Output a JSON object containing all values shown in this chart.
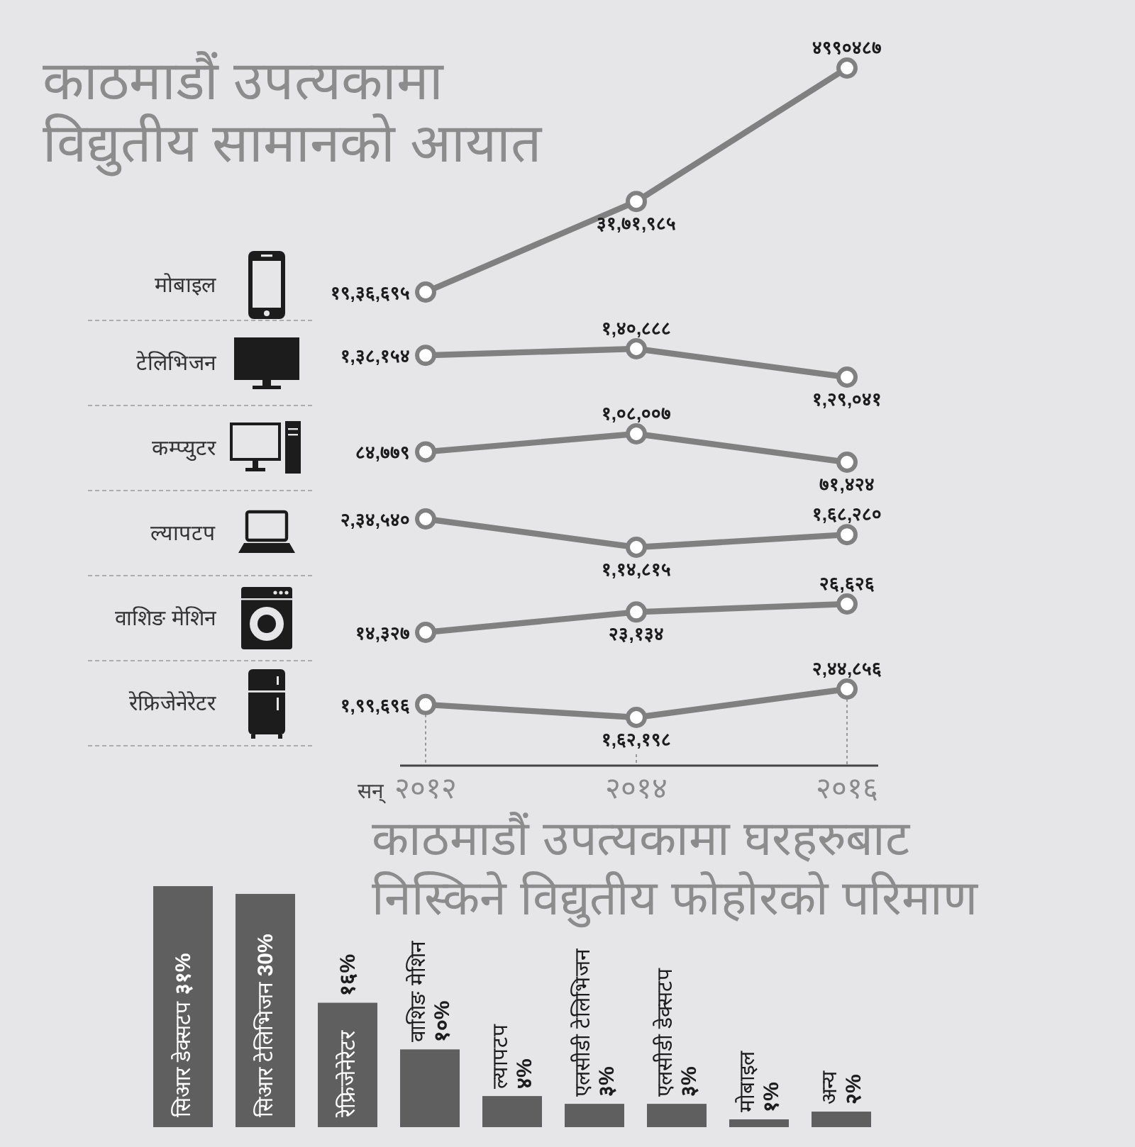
{
  "chart_data": [
    {
      "type": "line",
      "title": "काठमाडौं उपत्यकामा\nविद्युतीय सामानको आयात",
      "categories": [
        "२०१२",
        "२०१४",
        "२०१६"
      ],
      "tick_labels": false,
      "marker": "circle",
      "series": [
        {
          "name": "मोबाइल",
          "color": "#808080",
          "values": [
            1936695,
            3171985,
            4990487
          ],
          "value_labels": [
            "१९,३६,६९५",
            "३१,७१,९८५",
            "४९९०४८७"
          ]
        }
      ]
    },
    {
      "type": "line",
      "categories": [
        "२०१२",
        "२०१४",
        "२०१६"
      ],
      "tick_labels": false,
      "marker": "circle",
      "series": [
        {
          "name": "टेलिभिजन",
          "color": "#808080",
          "values": [
            138154,
            140888,
            129041
          ],
          "value_labels": [
            "१,३८,१५४",
            "१,४०,८८८",
            "१,२९,०४१"
          ]
        }
      ]
    },
    {
      "type": "line",
      "categories": [
        "२०१२",
        "२०१४",
        "२०१६"
      ],
      "tick_labels": false,
      "marker": "circle",
      "series": [
        {
          "name": "कम्प्युटर",
          "color": "#808080",
          "values": [
            84779,
            108007,
            71424
          ],
          "value_labels": [
            "८४,७७९",
            "१,०८,००७",
            "७१,४२४"
          ]
        }
      ]
    },
    {
      "type": "line",
      "categories": [
        "२०१२",
        "२०१४",
        "२०१६"
      ],
      "tick_labels": false,
      "marker": "circle",
      "series": [
        {
          "name": "ल्यापटप",
          "color": "#808080",
          "values": [
            234540,
            114815,
            168280
          ],
          "value_labels": [
            "२,३४,५४०",
            "१,१४,८१५",
            "१,६८,२८०"
          ]
        }
      ]
    },
    {
      "type": "line",
      "categories": [
        "२०१२",
        "२०१४",
        "२०१६"
      ],
      "tick_labels": false,
      "marker": "circle",
      "series": [
        {
          "name": "वाशिङ मेशिन",
          "color": "#808080",
          "values": [
            14327,
            23134,
            26626
          ],
          "value_labels": [
            "१४,३२७",
            "२३,१३४",
            "२६,६२६"
          ]
        }
      ]
    },
    {
      "type": "line",
      "categories": [
        "२०१२",
        "२०१४",
        "२०१६"
      ],
      "xlabel": "सन्",
      "tick_labels": "x",
      "grid": "x",
      "marker": "circle",
      "series": [
        {
          "name": "रेफ्रिजेनेरेटर",
          "color": "#808080",
          "values": [
            199696,
            162198,
            244856
          ],
          "value_labels": [
            "१,९९,६९६",
            "१,६२,१९८",
            "२,४४,८५६"
          ]
        }
      ]
    },
    {
      "type": "bar",
      "title": "काठमाडौं उपत्यकामा घरहरुबाट\nनिस्किने विद्युतीय फोहोरको परिमाण",
      "categories": [
        "सिआर डेक्सटप",
        "सिआर टेलिभिजन",
        "रेफ्रिजेनेरेटर",
        "वाशिङ मेशिन",
        "ल्यापटप",
        "एलसीडी टेलिभिजन",
        "एलसीडी डेक्सटप",
        "मोबाइल",
        "अन्य"
      ],
      "values": [
        31,
        30,
        16,
        10,
        4,
        3,
        3,
        1,
        2
      ],
      "value_labels": [
        "३१%",
        "30%",
        "१६%",
        "१०%",
        "४%",
        "३%",
        "३%",
        "१%",
        "२%"
      ],
      "color": "#5f5f5f"
    }
  ]
}
